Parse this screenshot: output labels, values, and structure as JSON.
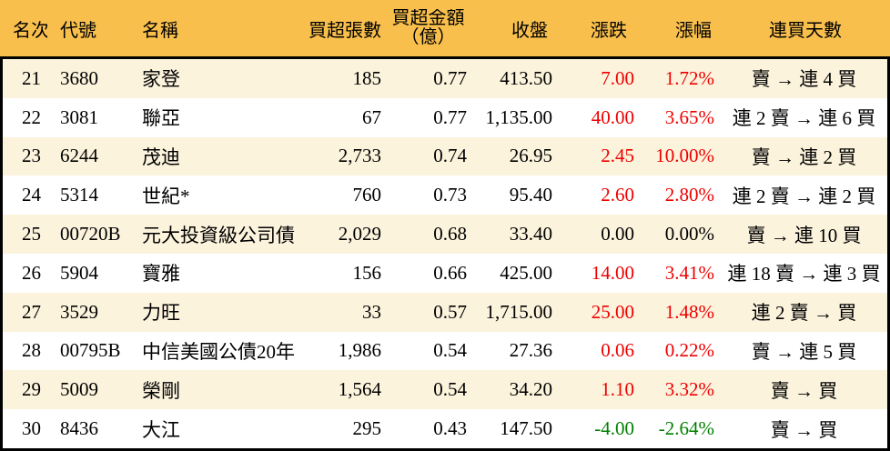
{
  "colors": {
    "header_bg": "#F8BF4D",
    "row_alt_bg": "#FCF3DD",
    "up_red": "#EE0000",
    "down_green": "#008000",
    "flat_black": "#000000",
    "border_black": "#000000"
  },
  "chart_data": {
    "type": "table",
    "title": "",
    "legend": "none",
    "grid": "off",
    "columns": [
      {
        "key": "rank",
        "label": "名次"
      },
      {
        "key": "code",
        "label": "代號"
      },
      {
        "key": "name",
        "label": "名稱"
      },
      {
        "key": "volume",
        "label": "買超張數"
      },
      {
        "key": "amount",
        "label": "買超金額",
        "label2": "（億）"
      },
      {
        "key": "close",
        "label": "收盤"
      },
      {
        "key": "change",
        "label": "漲跌"
      },
      {
        "key": "pct",
        "label": "漲幅"
      },
      {
        "key": "streak",
        "label": "連買天數"
      }
    ],
    "rows": [
      {
        "rank": "21",
        "code": "3680",
        "name": "家登",
        "volume": "185",
        "amount": "0.77",
        "close": "413.50",
        "change": "7.00",
        "pct": "1.72%",
        "streak": "賣 → 連 4 買"
      },
      {
        "rank": "22",
        "code": "3081",
        "name": "聯亞",
        "volume": "67",
        "amount": "0.77",
        "close": "1,135.00",
        "change": "40.00",
        "pct": "3.65%",
        "streak": "連 2 賣 → 連 6 買"
      },
      {
        "rank": "23",
        "code": "6244",
        "name": "茂迪",
        "volume": "2,733",
        "amount": "0.74",
        "close": "26.95",
        "change": "2.45",
        "pct": "10.00%",
        "streak": "賣 → 連 2 買"
      },
      {
        "rank": "24",
        "code": "5314",
        "name": "世紀*",
        "volume": "760",
        "amount": "0.73",
        "close": "95.40",
        "change": "2.60",
        "pct": "2.80%",
        "streak": "連 2 賣 → 連 2 買"
      },
      {
        "rank": "25",
        "code": "00720B",
        "name": "元大投資級公司債",
        "volume": "2,029",
        "amount": "0.68",
        "close": "33.40",
        "change": "0.00",
        "pct": "0.00%",
        "streak": "賣 → 連 10 買"
      },
      {
        "rank": "26",
        "code": "5904",
        "name": "寶雅",
        "volume": "156",
        "amount": "0.66",
        "close": "425.00",
        "change": "14.00",
        "pct": "3.41%",
        "streak": "連 18 賣 → 連 3 買"
      },
      {
        "rank": "27",
        "code": "3529",
        "name": "力旺",
        "volume": "33",
        "amount": "0.57",
        "close": "1,715.00",
        "change": "25.00",
        "pct": "1.48%",
        "streak": "連 2 賣 → 買"
      },
      {
        "rank": "28",
        "code": "00795B",
        "name": "中信美國公債20年",
        "volume": "1,986",
        "amount": "0.54",
        "close": "27.36",
        "change": "0.06",
        "pct": "0.22%",
        "streak": "賣 → 連 5 買"
      },
      {
        "rank": "29",
        "code": "5009",
        "name": "榮剛",
        "volume": "1,564",
        "amount": "0.54",
        "close": "34.20",
        "change": "1.10",
        "pct": "3.32%",
        "streak": "賣 → 買"
      },
      {
        "rank": "30",
        "code": "8436",
        "name": "大江",
        "volume": "295",
        "amount": "0.43",
        "close": "147.50",
        "change": "-4.00",
        "pct": "-2.64%",
        "streak": "賣 → 買"
      }
    ]
  }
}
